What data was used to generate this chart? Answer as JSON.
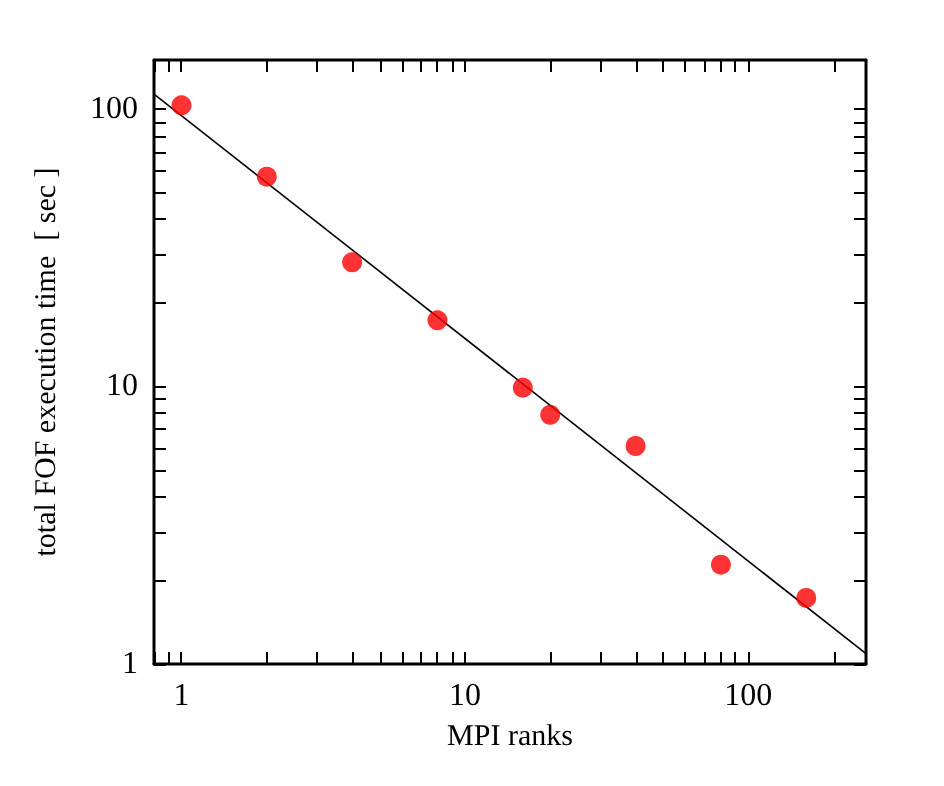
{
  "chart_data": {
    "type": "scatter",
    "xlabel": "MPI ranks",
    "ylabel": "total FOF execution time  [ sec ]",
    "log": "xy",
    "grid": false,
    "marker": "circle",
    "xlim": [
      0.8,
      260
    ],
    "ylim": [
      1,
      150
    ],
    "xticks": [
      {
        "value": 0.8,
        "label": null
      },
      {
        "value": 0.9,
        "label": null
      },
      1,
      {
        "value": 2,
        "label": null
      },
      {
        "value": 3,
        "label": null
      },
      {
        "value": 4,
        "label": null
      },
      {
        "value": 5,
        "label": null
      },
      {
        "value": 6,
        "label": null
      },
      {
        "value": 7,
        "label": null
      },
      {
        "value": 8,
        "label": null
      },
      {
        "value": 9,
        "label": null
      },
      10,
      {
        "value": 20,
        "label": null
      },
      {
        "value": 30,
        "label": null
      },
      {
        "value": 40,
        "label": null
      },
      {
        "value": 50,
        "label": null
      },
      {
        "value": 60,
        "label": null
      },
      {
        "value": 70,
        "label": null
      },
      {
        "value": 80,
        "label": null
      },
      {
        "value": 90,
        "label": null
      },
      100,
      {
        "value": 200,
        "label": null
      }
    ],
    "yticks": [
      1,
      {
        "value": 2,
        "label": null
      },
      {
        "value": 3,
        "label": null
      },
      {
        "value": 4,
        "label": null
      },
      {
        "value": 5,
        "label": null
      },
      {
        "value": 6,
        "label": null
      },
      {
        "value": 7,
        "label": null
      },
      {
        "value": 8,
        "label": null
      },
      {
        "value": 9,
        "label": null
      },
      10,
      {
        "value": 20,
        "label": null
      },
      {
        "value": 30,
        "label": null
      },
      {
        "value": 40,
        "label": null
      },
      {
        "value": 50,
        "label": null
      },
      {
        "value": 60,
        "label": null
      },
      {
        "value": 70,
        "label": null
      },
      {
        "value": 80,
        "label": null
      },
      {
        "value": 90,
        "label": null
      },
      100
    ],
    "series": [
      {
        "color": "#ff0000",
        "x": [
          1,
          2,
          4,
          8,
          16,
          20,
          40,
          80,
          160
        ],
        "values": [
          103,
          57,
          28,
          17.3,
          9.9,
          7.9,
          6.1,
          2.28,
          1.73
        ]
      },
      {
        "type": "line",
        "color": "#000000",
        "marker": "none",
        "line_style": "solid",
        "x": [
          0.8,
          260
        ],
        "values": [
          113,
          1.09
        ]
      }
    ]
  }
}
